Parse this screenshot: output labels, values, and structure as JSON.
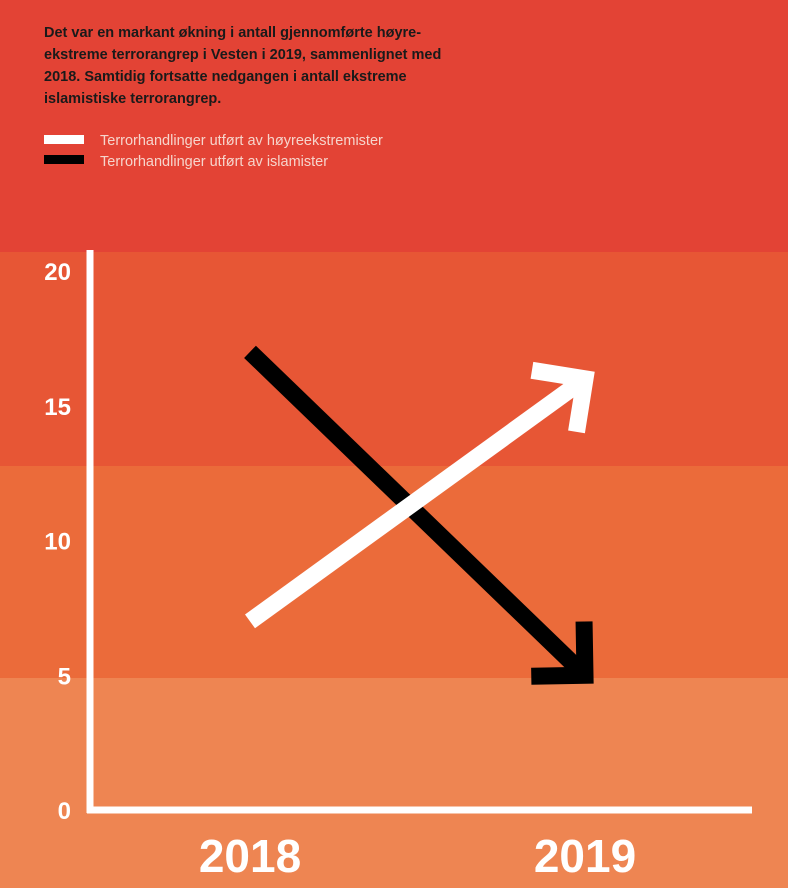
{
  "chart_data": {
    "type": "line",
    "title": "Det var en markant økning i antall gjennomførte høyre-ekstreme terrorangrep i Vesten i 2019, sammenlignet med 2018. Samtidig fortsatte nedgangen i antall ekstreme islamistiske terrorangrep.",
    "title_lines": [
      "Det var en markant økning i antall gjennomførte høyre-",
      "ekstreme terrorangrep i Vesten i 2019, sammenlignet med",
      "2018. Samtidig fortsatte nedgangen i antall ekstreme",
      "islamistiske terrorangrep."
    ],
    "categories": [
      "2018",
      "2019"
    ],
    "series": [
      {
        "name": "Terrorhandlinger utført av høyreekstremister",
        "values": [
          7,
          16
        ],
        "color": "#ffffff"
      },
      {
        "name": "Terrorhandlinger utført av islamister",
        "values": [
          17,
          5
        ],
        "color": "#000000"
      }
    ],
    "ylim": [
      0,
      20
    ],
    "yticks": [
      "0",
      "5",
      "10",
      "15",
      "20"
    ],
    "xlabel": "",
    "ylabel": "",
    "grid": false,
    "legend_position": "top-left",
    "colors": {
      "header_background": "#e34335",
      "band_high": "#e75635",
      "band_mid": "#eb6b3a",
      "band_low": "#ee8552",
      "axis": "#ffffff"
    }
  }
}
